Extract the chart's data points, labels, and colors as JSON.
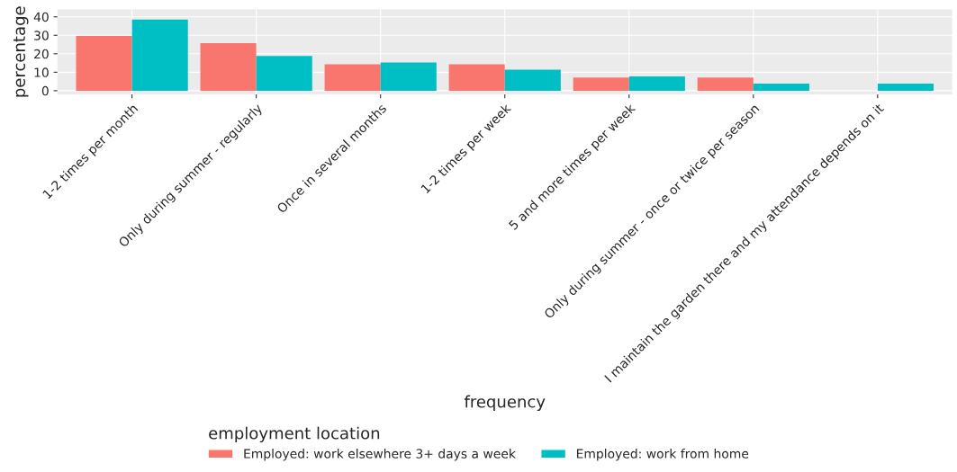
{
  "chart_data": {
    "type": "bar",
    "xlabel": "frequency",
    "ylabel": "percentage",
    "legend_title": "employment location",
    "legend": "bottom",
    "grid": true,
    "ylim": [
      -2,
      44
    ],
    "yticks": [
      0,
      10,
      20,
      30,
      40
    ],
    "categories": [
      "1-2 times per month",
      "Only during summer - regularly",
      "Once in several months",
      "1-2 times per week",
      "5 and more times per week",
      "Only during summer - once or twice per season",
      "I maintain the garden there and my attendance depends on it"
    ],
    "series": [
      {
        "name": "Employed: work elsewhere 3+ days a week",
        "color": "#f8766d",
        "values": [
          29.6,
          25.7,
          14.3,
          14.3,
          7.1,
          7.1,
          null
        ]
      },
      {
        "name": "Employed: work from home",
        "color": "#00bfc4",
        "values": [
          38.5,
          18.8,
          15.3,
          11.4,
          7.7,
          3.8,
          3.8
        ]
      }
    ]
  }
}
